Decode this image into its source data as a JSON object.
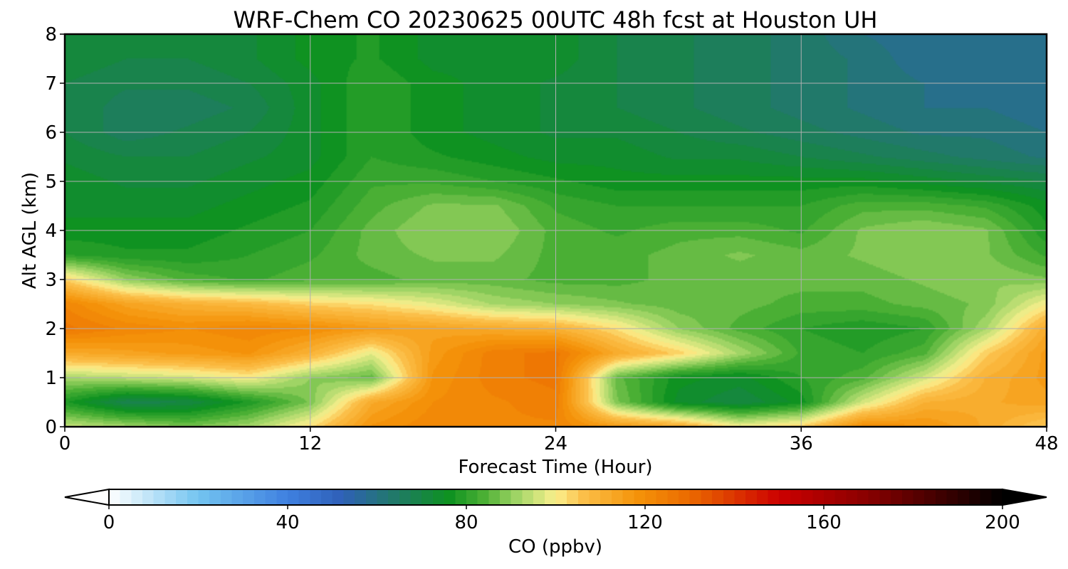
{
  "chart_data": {
    "type": "heatmap",
    "subtype": "filled-contour",
    "title": "WRF-Chem CO  20230625 00UTC 48h fcst at Houston UH",
    "xlabel": "Forecast Time (Hour)",
    "ylabel": "Alt AGL (km)",
    "xlim": [
      0,
      48
    ],
    "ylim": [
      0,
      8
    ],
    "x_ticks": [
      0,
      12,
      24,
      36,
      48
    ],
    "y_ticks": [
      0,
      1,
      2,
      3,
      4,
      5,
      6,
      7,
      8
    ],
    "grid": true,
    "x": [
      0,
      3,
      6,
      9,
      12,
      15,
      18,
      21,
      24,
      27,
      30,
      33,
      36,
      39,
      42,
      45,
      48
    ],
    "y": [
      0,
      0.5,
      1,
      1.5,
      2,
      2.5,
      3,
      3.5,
      4,
      4.5,
      5,
      5.5,
      6,
      6.5,
      7,
      7.5,
      8
    ],
    "z": [
      [
        95,
        92,
        88,
        92,
        102,
        118,
        122,
        122,
        122,
        116,
        112,
        100,
        104,
        120,
        118,
        112,
        104
      ],
      [
        78,
        68,
        70,
        78,
        88,
        112,
        120,
        122,
        124,
        88,
        74,
        70,
        76,
        96,
        110,
        112,
        114
      ],
      [
        92,
        94,
        96,
        100,
        90,
        86,
        118,
        124,
        126,
        86,
        76,
        74,
        80,
        84,
        96,
        110,
        116
      ],
      [
        112,
        114,
        116,
        118,
        110,
        98,
        116,
        124,
        126,
        112,
        104,
        92,
        82,
        80,
        84,
        104,
        116
      ],
      [
        126,
        122,
        120,
        122,
        120,
        116,
        114,
        112,
        110,
        102,
        90,
        84,
        80,
        78,
        80,
        92,
        112
      ],
      [
        122,
        114,
        110,
        108,
        104,
        102,
        98,
        92,
        90,
        88,
        86,
        86,
        84,
        84,
        86,
        88,
        100
      ],
      [
        104,
        90,
        84,
        82,
        84,
        84,
        86,
        86,
        84,
        84,
        86,
        86,
        86,
        86,
        88,
        90,
        88
      ],
      [
        80,
        78,
        78,
        80,
        82,
        86,
        88,
        88,
        84,
        84,
        86,
        88,
        86,
        88,
        90,
        88,
        82
      ],
      [
        76,
        76,
        76,
        78,
        80,
        86,
        90,
        90,
        84,
        82,
        84,
        84,
        82,
        88,
        90,
        88,
        78
      ],
      [
        74,
        74,
        74,
        76,
        78,
        84,
        88,
        88,
        82,
        80,
        80,
        80,
        80,
        84,
        84,
        82,
        76
      ],
      [
        74,
        72,
        72,
        74,
        76,
        82,
        82,
        80,
        78,
        76,
        76,
        76,
        76,
        76,
        74,
        72,
        70
      ],
      [
        72,
        70,
        70,
        72,
        74,
        80,
        78,
        76,
        74,
        74,
        72,
        72,
        70,
        68,
        66,
        64,
        62
      ],
      [
        70,
        66,
        68,
        70,
        74,
        80,
        76,
        74,
        72,
        72,
        70,
        68,
        66,
        64,
        62,
        62,
        60
      ],
      [
        70,
        66,
        66,
        68,
        74,
        80,
        76,
        74,
        72,
        70,
        68,
        66,
        64,
        62,
        60,
        60,
        58
      ],
      [
        70,
        68,
        68,
        70,
        74,
        80,
        76,
        74,
        72,
        70,
        68,
        66,
        64,
        62,
        60,
        58,
        58
      ],
      [
        72,
        70,
        70,
        72,
        76,
        78,
        74,
        74,
        74,
        70,
        68,
        66,
        64,
        62,
        58,
        58,
        58
      ],
      [
        72,
        70,
        70,
        72,
        76,
        78,
        74,
        74,
        74,
        70,
        68,
        66,
        64,
        60,
        58,
        58,
        58
      ]
    ],
    "colorbar": {
      "label": "CO  (ppbv)",
      "min": 0,
      "max": 200,
      "ticks": [
        0,
        40,
        80,
        120,
        160,
        200
      ],
      "extend": "both",
      "stops": [
        {
          "v": 0,
          "c": "#ffffff"
        },
        {
          "v": 20,
          "c": "#73c4f0"
        },
        {
          "v": 40,
          "c": "#3f80e0"
        },
        {
          "v": 52,
          "c": "#2f60b8"
        },
        {
          "v": 64,
          "c": "#217a68"
        },
        {
          "v": 76,
          "c": "#0d9120"
        },
        {
          "v": 84,
          "c": "#4cb035"
        },
        {
          "v": 92,
          "c": "#a8d86a"
        },
        {
          "v": 100,
          "c": "#fbf08e"
        },
        {
          "v": 106,
          "c": "#fbc04a"
        },
        {
          "v": 118,
          "c": "#f5940a"
        },
        {
          "v": 130,
          "c": "#eb6a00"
        },
        {
          "v": 150,
          "c": "#cc0000"
        },
        {
          "v": 170,
          "c": "#880000"
        },
        {
          "v": 200,
          "c": "#000000"
        }
      ]
    }
  }
}
